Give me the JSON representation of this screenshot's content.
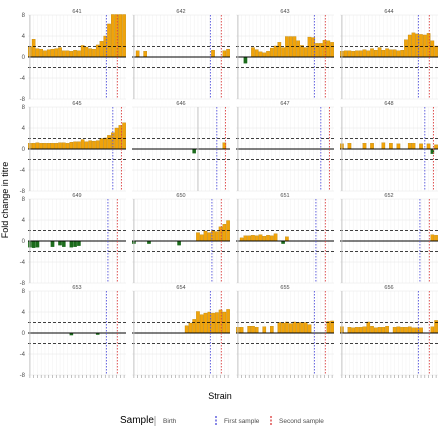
{
  "chart_data": {
    "type": "bar",
    "ylabel": "Fold change in titre",
    "xlabel": "Strain",
    "y_ticks": [
      8,
      4,
      0,
      -4,
      -8
    ],
    "ylim": [
      -8,
      8
    ],
    "thresholds": [
      2,
      -2
    ],
    "legend": {
      "title": "Sample",
      "placement": "bottom",
      "entries": [
        {
          "label": "Birth",
          "color": "#bdbdbd"
        },
        {
          "label": "First sample",
          "color": "#5555dd"
        },
        {
          "label": "Second sample",
          "color": "#dd4444"
        }
      ]
    },
    "colors": {
      "increase": "#f0a30a",
      "increase_border": "#b07c00",
      "decrease": "#1b6b1b",
      "zero_line": "#000000",
      "threshold_line": "#000000",
      "grid": "#e6e6e6"
    },
    "strain_count": 26,
    "panels": [
      {
        "id": "641",
        "birth": 0.5,
        "first": 20.8,
        "second": 23.7,
        "values": [
          2,
          3.4,
          1.6,
          1.5,
          1.2,
          1.4,
          1.5,
          1.6,
          1.8,
          1.2,
          1.2,
          1.1,
          1.3,
          1.2,
          2.2,
          1.9,
          1.6,
          1.5,
          2.3,
          3,
          4,
          6.3,
          8.1,
          8.1,
          8.1,
          8.1
        ]
      },
      {
        "id": "642",
        "birth": 0.5,
        "first": 20.8,
        "second": 23.7,
        "values": [
          0,
          1.2,
          0,
          1.1,
          0,
          0,
          0,
          0,
          0,
          0,
          0,
          0,
          0,
          0,
          0,
          0,
          0,
          0,
          0,
          0,
          0,
          1.3,
          0,
          0,
          1.2,
          1.5
        ]
      },
      {
        "id": "643",
        "birth": 0.5,
        "first": 20.8,
        "second": 23.7,
        "values": [
          0,
          0,
          -1.2,
          0,
          1.8,
          1.4,
          1,
          0.8,
          1.1,
          1.7,
          2.1,
          2.8,
          1.8,
          3.9,
          3.9,
          3.9,
          3.1,
          2.2,
          1.8,
          3.8,
          3.7,
          2.6,
          2.6,
          3.2,
          3.1,
          2.8
        ]
      },
      {
        "id": "644",
        "birth": 0.5,
        "first": 20.8,
        "second": 23.7,
        "values": [
          1.1,
          1.2,
          1.2,
          1.1,
          1.2,
          1.2,
          1.4,
          1.2,
          1.6,
          1.3,
          1.8,
          1.3,
          1.6,
          1.4,
          1.4,
          1.2,
          1.3,
          3.3,
          4.2,
          4.6,
          4.4,
          4.3,
          4.2,
          4.5,
          3.1,
          2.1
        ]
      },
      {
        "id": "645",
        "birth": 0.5,
        "first": 22.5,
        "second": 24.8,
        "values": [
          1.1,
          1.1,
          1.2,
          1.1,
          1.1,
          1.1,
          1.1,
          1.1,
          1.2,
          1.2,
          1.1,
          1.3,
          1.4,
          1.4,
          1.8,
          1.4,
          1.6,
          1.5,
          1.6,
          2,
          2.1,
          2.6,
          3.1,
          4,
          4.5,
          5
        ]
      },
      {
        "id": "646",
        "birth": 17.5,
        "first": 22.5,
        "second": 24.8,
        "values": [
          0,
          0,
          0,
          0,
          0,
          0,
          0,
          0,
          0,
          0,
          0,
          0,
          0,
          0,
          0,
          0,
          -0.8,
          0,
          0,
          0,
          0,
          0,
          0,
          0,
          1.2,
          0
        ]
      },
      {
        "id": "647",
        "birth": 0.5,
        "first": 22.5,
        "second": 24.8,
        "values": [
          0,
          0,
          0,
          0,
          0,
          0,
          0,
          0,
          0,
          0,
          0,
          0,
          0,
          0,
          0,
          0,
          0,
          0,
          0,
          0,
          0,
          0,
          0,
          0,
          0,
          0
        ]
      },
      {
        "id": "648",
        "birth": 0.5,
        "first": 22.5,
        "second": 24.8,
        "values": [
          1,
          0,
          1.1,
          0,
          0,
          0,
          1.1,
          0,
          1.1,
          0,
          0,
          1.2,
          0,
          1.1,
          0,
          1,
          0,
          0,
          1.1,
          1.1,
          0,
          1,
          0,
          1,
          -0.9,
          0.8
        ]
      },
      {
        "id": "649",
        "birth": 0.5,
        "first": 21.2,
        "second": 23.7,
        "values": [
          -1.2,
          -1.3,
          -1.2,
          0,
          0,
          0,
          -1.1,
          0,
          -0.8,
          -1.1,
          0,
          -1.2,
          -1.1,
          -0.9,
          0,
          0,
          0,
          0,
          0,
          0,
          0,
          0,
          0,
          0,
          0,
          0
        ]
      },
      {
        "id": "650",
        "birth": 0.5,
        "first": 21.2,
        "second": 23.7,
        "values": [
          -0.5,
          0,
          0,
          0,
          -0.5,
          0,
          0,
          0,
          0,
          0,
          0,
          0,
          -0.8,
          0,
          0,
          0,
          0,
          1.6,
          1.2,
          1.9,
          1.6,
          2,
          1.8,
          2.7,
          3.2,
          3.9
        ]
      },
      {
        "id": "651",
        "birth": 0.5,
        "first": 21.2,
        "second": 23.7,
        "values": [
          0,
          0.6,
          1,
          1,
          1.1,
          1,
          1.2,
          0.9,
          1.1,
          1,
          1.4,
          0,
          -0.5,
          0.8,
          0,
          0,
          0,
          0,
          0,
          0,
          0,
          0,
          0,
          0,
          0,
          0
        ]
      },
      {
        "id": "652",
        "birth": 0.5,
        "first": 21.2,
        "second": 23.7,
        "values": [
          0,
          0,
          0,
          0,
          0,
          0,
          0,
          0,
          0,
          0,
          0,
          0,
          0,
          0,
          0,
          0,
          0,
          0,
          0,
          0,
          0,
          0,
          0,
          0,
          1.2,
          1.1
        ]
      },
      {
        "id": "653",
        "birth": 0.5,
        "first": 20.8,
        "second": 23.7,
        "values": [
          0,
          0,
          0,
          0,
          0,
          0,
          0,
          0,
          0,
          0,
          0,
          -0.4,
          0,
          0,
          0,
          0,
          0,
          0,
          -0.3,
          0,
          0,
          0,
          0,
          0,
          0,
          0
        ]
      },
      {
        "id": "654",
        "birth": 0.5,
        "first": 20.8,
        "second": 23.7,
        "values": [
          0,
          0,
          0,
          0,
          0,
          0,
          0,
          0,
          0,
          0,
          0,
          0,
          0,
          0,
          1.4,
          1.9,
          2.6,
          4.1,
          3.5,
          3.8,
          4,
          3.8,
          3.9,
          4.4,
          4,
          4.5
        ]
      },
      {
        "id": "655",
        "birth": 0.5,
        "first": 20.8,
        "second": 23.7,
        "values": [
          1.1,
          1.1,
          0,
          1.3,
          1.3,
          1.1,
          0,
          1.2,
          0,
          1.3,
          0,
          2,
          1.9,
          2.1,
          1.8,
          2.1,
          2,
          2,
          2,
          1.6,
          0,
          0,
          0,
          0,
          2.2,
          2.3
        ]
      },
      {
        "id": "656",
        "birth": 0.5,
        "first": 20.8,
        "second": 23.7,
        "values": [
          1.2,
          0,
          1.1,
          1,
          1.1,
          1.1,
          1.2,
          2.1,
          1.3,
          1,
          1.1,
          1.1,
          1.3,
          0,
          1.1,
          1.2,
          1.1,
          1.1,
          1.2,
          1,
          1,
          1,
          0,
          0,
          1.2,
          2.4
        ]
      }
    ]
  }
}
